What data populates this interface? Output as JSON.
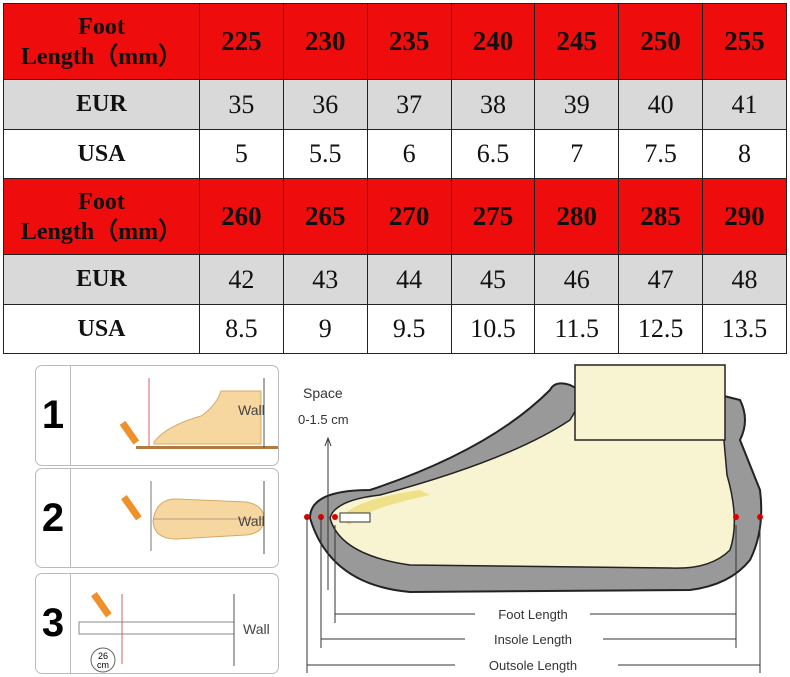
{
  "table": {
    "blocks": [
      {
        "header": {
          "label": [
            "Foot",
            "Length（mm）"
          ],
          "values": [
            "225",
            "230",
            "235",
            "240",
            "245",
            "250",
            "255"
          ]
        },
        "eur": {
          "label": "EUR",
          "values": [
            "35",
            "36",
            "37",
            "38",
            "39",
            "40",
            "41"
          ]
        },
        "usa": {
          "label": "USA",
          "values": [
            "5",
            "5.5",
            "6",
            "6.5",
            "7",
            "7.5",
            "8"
          ]
        }
      },
      {
        "header": {
          "label": [
            "Foot",
            "Length（mm）"
          ],
          "values": [
            "260",
            "265",
            "270",
            "275",
            "280",
            "285",
            "290"
          ]
        },
        "eur": {
          "label": "EUR",
          "values": [
            "42",
            "43",
            "44",
            "45",
            "46",
            "47",
            "48"
          ]
        },
        "usa": {
          "label": "USA",
          "values": [
            "8.5",
            "9",
            "9.5",
            "10.5",
            "11.5",
            "12.5",
            "13.5"
          ]
        }
      }
    ]
  },
  "steps": [
    {
      "number": "1",
      "wall": "Wall"
    },
    {
      "number": "2",
      "wall": "Wall"
    },
    {
      "number": "3",
      "wall": "Wall",
      "measure": "26",
      "unit": "cm"
    }
  ],
  "diagram": {
    "space_label": "Space",
    "space_range": "0-1.5 cm",
    "foot_length": "Foot Length",
    "insole_length": "Insole Length",
    "outsole_length": "Outsole Length"
  },
  "colors": {
    "header_red": "#ee0c0c",
    "row_gray": "#d9d9d9"
  }
}
